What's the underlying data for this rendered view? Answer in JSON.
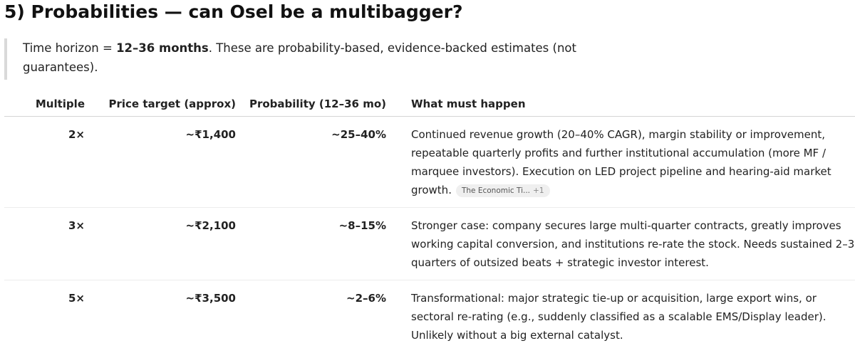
{
  "section": {
    "title": "5) Probabilities — can Osel be a multibagger?"
  },
  "note": {
    "prefix": "Time horizon = ",
    "horizon": "12–36 months",
    "suffix": ". These are probability-based, evidence-backed estimates (not guarantees)."
  },
  "table": {
    "headers": {
      "multiple": "Multiple",
      "price_target": "Price target (approx)",
      "probability": "Probability (12–36 mo)",
      "requirements": "What must happen"
    },
    "rows": [
      {
        "multiple": "2×",
        "price_target": "~₹1,400",
        "probability": "~25–40%",
        "requirements": "Continued revenue growth (20–40% CAGR), margin stability or improvement, repeatable quarterly profits and further institutional accumulation (more MF / marquee investors). Execution on LED project pipeline and hearing-aid market growth.",
        "source_label": "The Economic Ti...",
        "source_more": "+1"
      },
      {
        "multiple": "3×",
        "price_target": "~₹2,100",
        "probability": "~8–15%",
        "requirements": "Stronger case: company secures large multi-quarter contracts, greatly improves working capital conversion, and institutions re-rate the stock. Needs sustained 2–3 quarters of outsized beats + strategic investor interest."
      },
      {
        "multiple": "5×",
        "price_target": "~₹3,500",
        "probability": "~2–6%",
        "requirements": "Transformational: major strategic tie-up or acquisition, large export wins, or sectoral re-rating (e.g., suddenly classified as a scalable EMS/Display leader). Unlikely without a big external catalyst."
      }
    ]
  }
}
